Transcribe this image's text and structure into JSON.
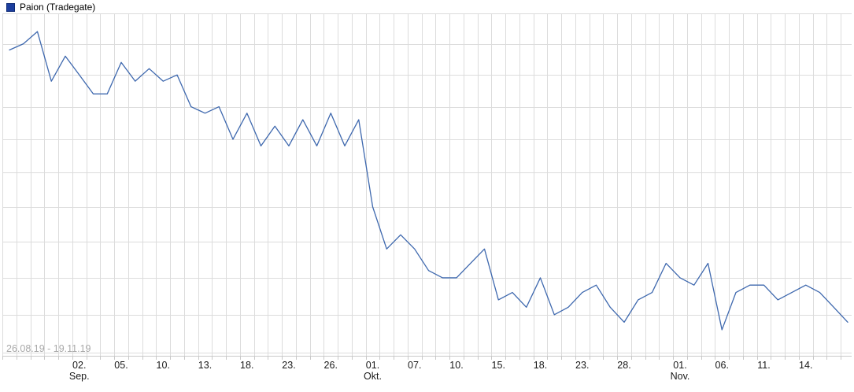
{
  "legend": {
    "series_label": "Paion (Tradegate)",
    "series_color": "#1c3e9e"
  },
  "footer": {
    "date_range": "26.08.19 - 19.11.19"
  },
  "chart_data": {
    "type": "line",
    "title": "Paion (Tradegate)",
    "scale": "log",
    "grid": true,
    "legend_position": "top-left",
    "ylim": [
      1.8,
      2.3
    ],
    "y_grid_step": 0.05,
    "line_color": "#3e68ae",
    "grid_color": "#dcdcdc",
    "axis_color": "#c9c9c9",
    "tick_label_color": "#1a1a1a",
    "x": [
      "26.08.",
      "27.08.",
      "28.08.",
      "29.08.",
      "30.08.",
      "02.09.",
      "03.09.",
      "04.09.",
      "05.09.",
      "06.09.",
      "09.09.",
      "10.09.",
      "11.09.",
      "12.09.",
      "13.09.",
      "16.09.",
      "17.09.",
      "18.09.",
      "19.09.",
      "20.09.",
      "23.09.",
      "24.09.",
      "25.09.",
      "26.09.",
      "27.09.",
      "30.09.",
      "01.10.",
      "02.10.",
      "04.10.",
      "07.10.",
      "08.10.",
      "09.10.",
      "10.10.",
      "11.10.",
      "14.10.",
      "15.10.",
      "16.10.",
      "17.10.",
      "18.10.",
      "21.10.",
      "22.10.",
      "23.10.",
      "24.10.",
      "25.10.",
      "28.10.",
      "29.10.",
      "30.10.",
      "31.10.",
      "01.11.",
      "04.11.",
      "05.11.",
      "06.11.",
      "07.11.",
      "08.11.",
      "11.11.",
      "12.11.",
      "13.11.",
      "14.11.",
      "15.11.",
      "18.11.",
      "19.11."
    ],
    "values": [
      2.24,
      2.25,
      2.27,
      2.19,
      2.23,
      2.2,
      2.17,
      2.17,
      2.22,
      2.19,
      2.21,
      2.19,
      2.2,
      2.15,
      2.14,
      2.15,
      2.1,
      2.14,
      2.09,
      2.12,
      2.09,
      2.13,
      2.09,
      2.14,
      2.09,
      2.13,
      2.0,
      1.94,
      1.96,
      1.94,
      1.91,
      1.9,
      1.9,
      1.92,
      1.94,
      1.87,
      1.88,
      1.86,
      1.9,
      1.85,
      1.86,
      1.88,
      1.89,
      1.86,
      1.84,
      1.87,
      1.88,
      1.92,
      1.9,
      1.89,
      1.92,
      1.83,
      1.88,
      1.89,
      1.89,
      1.87,
      1.88,
      1.89,
      1.88,
      1.86,
      1.84
    ],
    "x_ticks": [
      {
        "index": 5,
        "label": "02.",
        "month": "Sep."
      },
      {
        "index": 8,
        "label": "05."
      },
      {
        "index": 11,
        "label": "10."
      },
      {
        "index": 14,
        "label": "13."
      },
      {
        "index": 17,
        "label": "18."
      },
      {
        "index": 20,
        "label": "23."
      },
      {
        "index": 23,
        "label": "26."
      },
      {
        "index": 26,
        "label": "01.",
        "month": "Okt."
      },
      {
        "index": 29,
        "label": "07."
      },
      {
        "index": 32,
        "label": "10."
      },
      {
        "index": 35,
        "label": "15."
      },
      {
        "index": 38,
        "label": "18."
      },
      {
        "index": 41,
        "label": "23."
      },
      {
        "index": 44,
        "label": "28."
      },
      {
        "index": 48,
        "label": "01.",
        "month": "Nov."
      },
      {
        "index": 51,
        "label": "06."
      },
      {
        "index": 54,
        "label": "11."
      },
      {
        "index": 57,
        "label": "14."
      }
    ]
  }
}
